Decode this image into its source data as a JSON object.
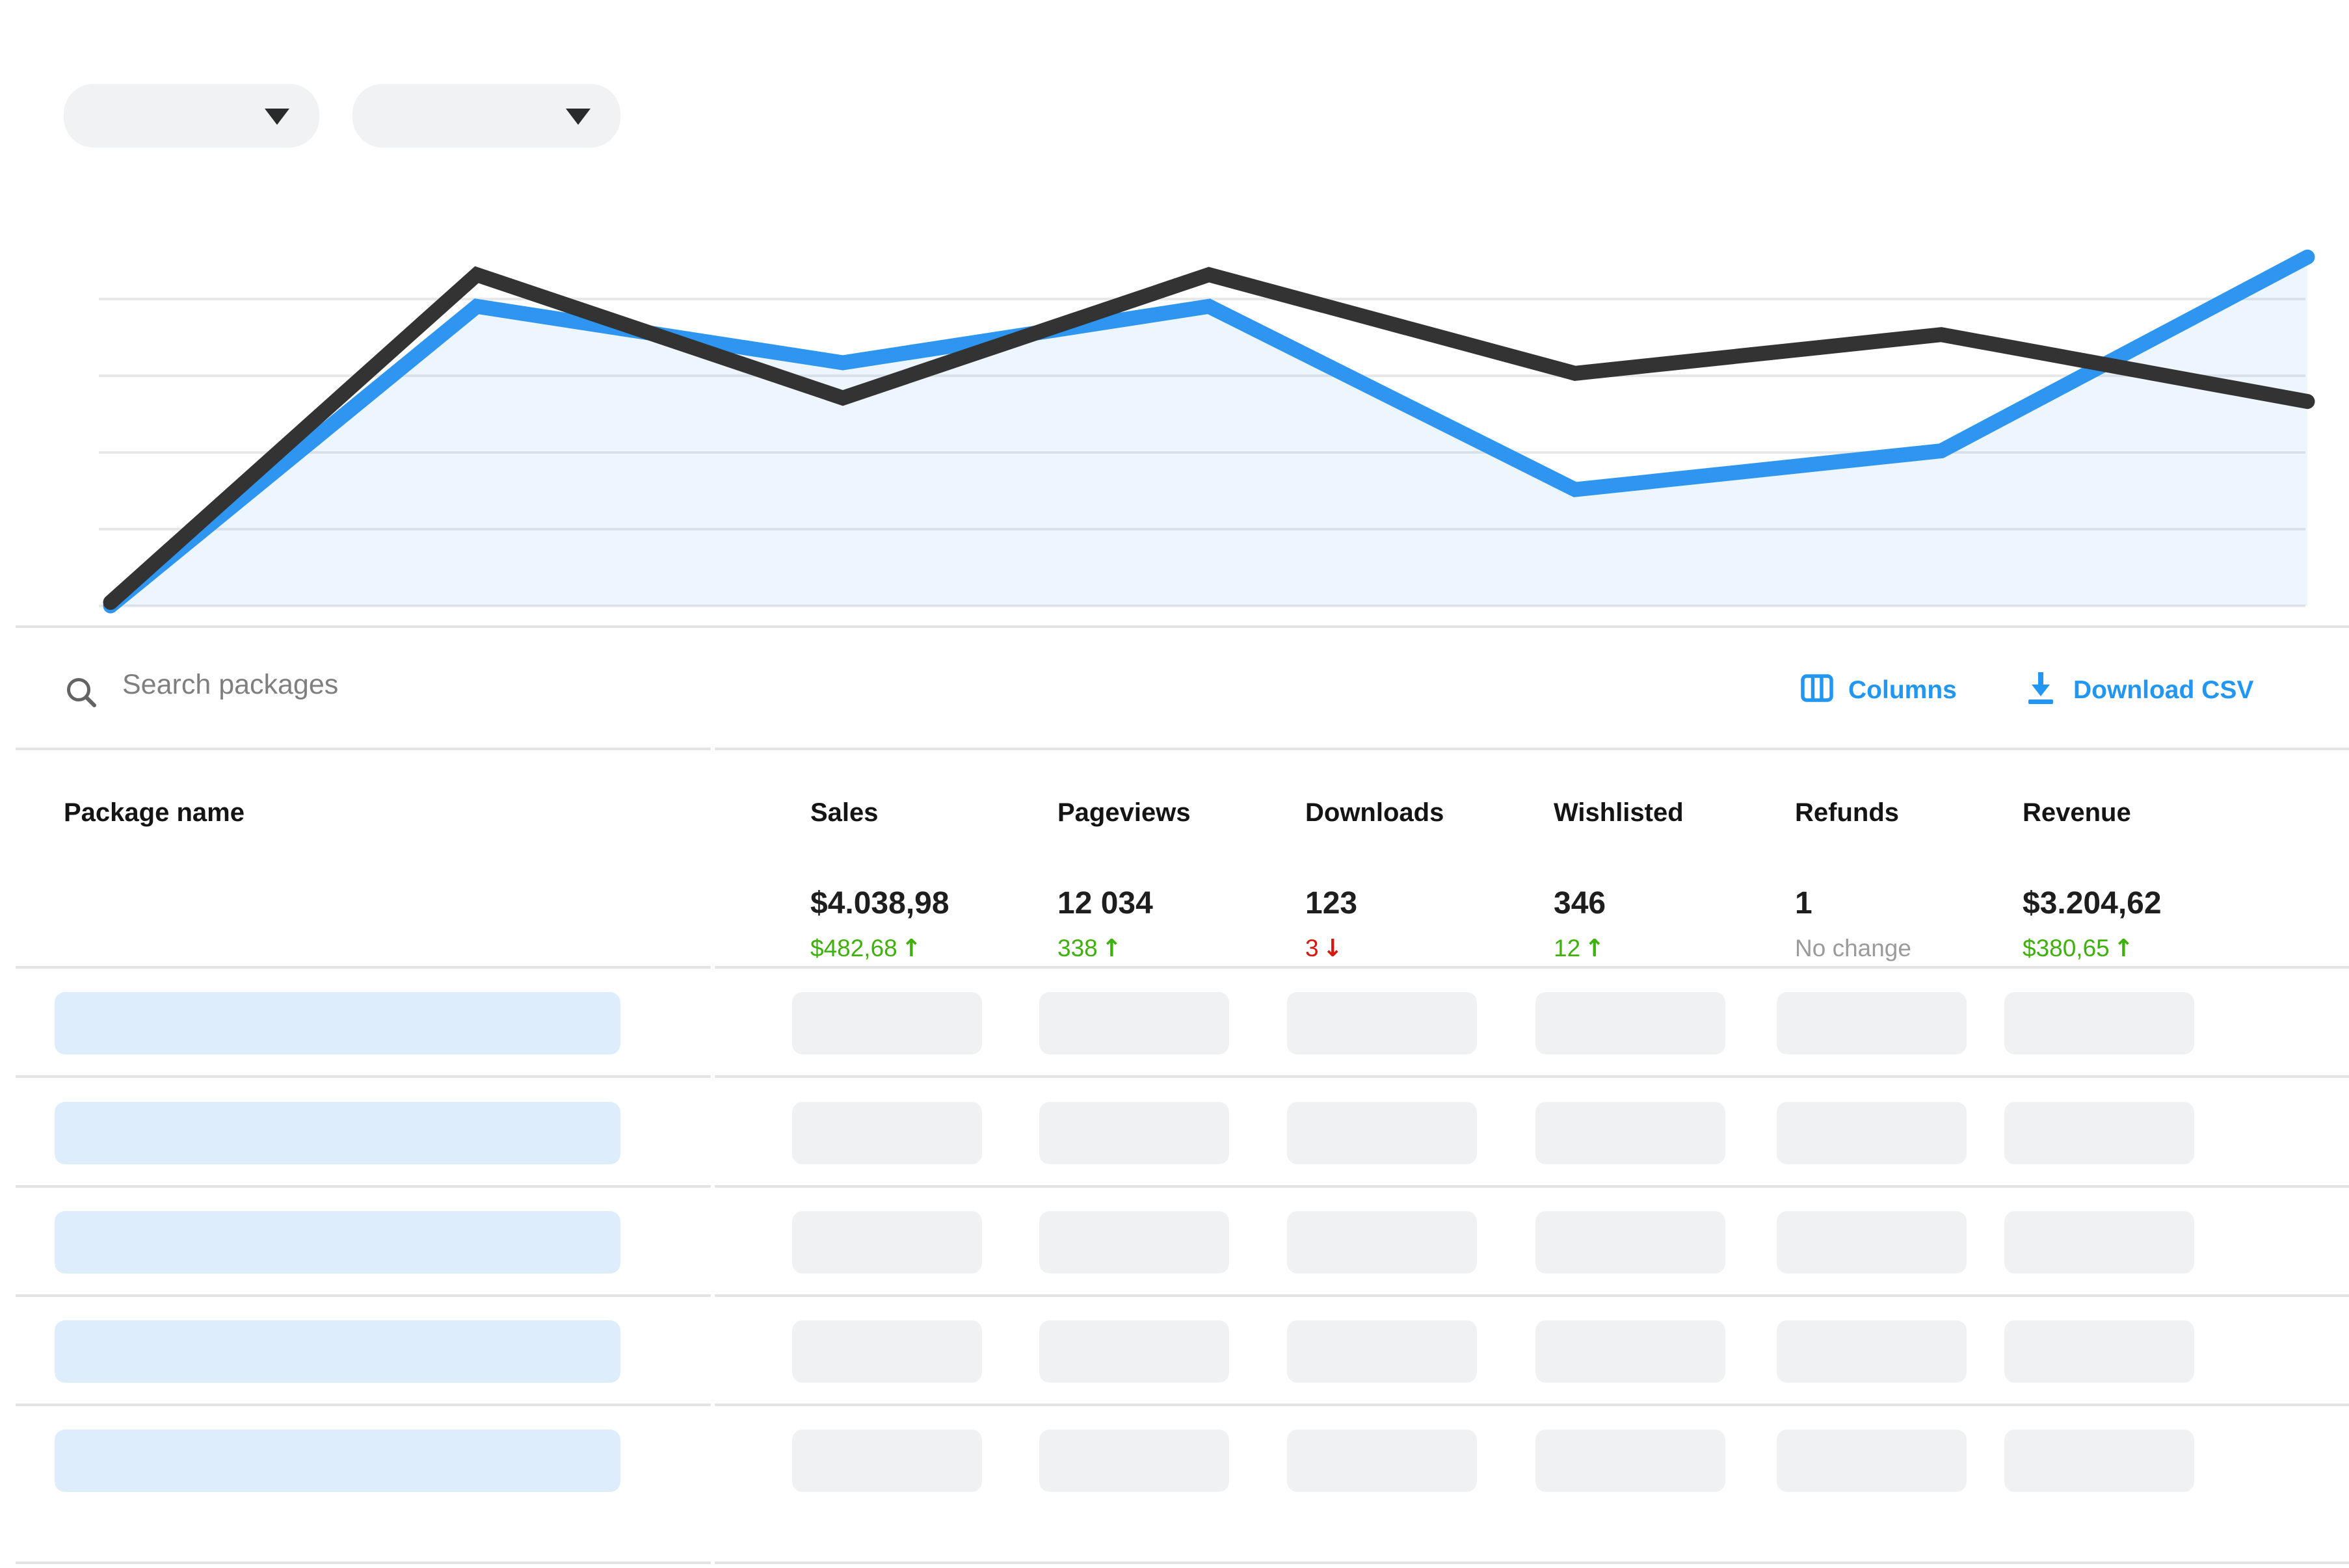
{
  "filters": {
    "dropdowns": [
      {
        "value": ""
      },
      {
        "value": ""
      }
    ]
  },
  "toolbar": {
    "search_placeholder": "Search packages",
    "columns_label": "Columns",
    "download_label": "Download CSV"
  },
  "table": {
    "name_column_header": "Package name",
    "columns": [
      {
        "label": "Sales",
        "value": "$4.038,98",
        "delta": "$482,68",
        "arrow": "↑",
        "delta_color": "green"
      },
      {
        "label": "Pageviews",
        "value": "12 034",
        "delta": "338",
        "arrow": "↑",
        "delta_color": "green"
      },
      {
        "label": "Downloads",
        "value": "123",
        "delta": "3",
        "arrow": "↓",
        "delta_color": "red"
      },
      {
        "label": "Wishlisted",
        "value": "346",
        "delta": "12",
        "arrow": "↑",
        "delta_color": "green"
      },
      {
        "label": "Refunds",
        "value": "1",
        "delta": "No change",
        "arrow": "",
        "delta_color": "gray"
      },
      {
        "label": "Revenue",
        "value": "$3.204,62",
        "delta": "$380,65",
        "arrow": "↑",
        "delta_color": "green"
      }
    ],
    "skeleton_row_count": 5
  },
  "chart_data": {
    "type": "line",
    "x": [
      1,
      2,
      3,
      4,
      5,
      6,
      7
    ],
    "title": "",
    "xlabel": "",
    "ylabel": "",
    "ylim": [
      0,
      100
    ],
    "grid": "horizontal",
    "legend": "none",
    "series": [
      {
        "name": "series-blue",
        "color": "#2e96f0",
        "area_fill": true,
        "values": [
          0,
          85,
          69,
          85,
          33,
          44,
          99
        ]
      },
      {
        "name": "series-dark",
        "color": "#333333",
        "area_fill": false,
        "values": [
          1,
          94,
          59,
          94,
          66,
          77,
          58
        ]
      }
    ]
  },
  "colors": {
    "accent_blue": "#2196f3",
    "line_blue": "#2e96f0",
    "line_dark": "#333333",
    "area_fill": "rgba(46,150,240,0.085)",
    "gridline": "#e8e8e9",
    "divider": "#e3e3e4",
    "positive_green": "#3eb10c",
    "negative_red": "#d5190f",
    "neutral_gray": "#9b9b9b",
    "skeleton_blue": "#deedfb",
    "skeleton_gray": "#f0f1f3",
    "pill_gray": "#f1f2f3"
  }
}
